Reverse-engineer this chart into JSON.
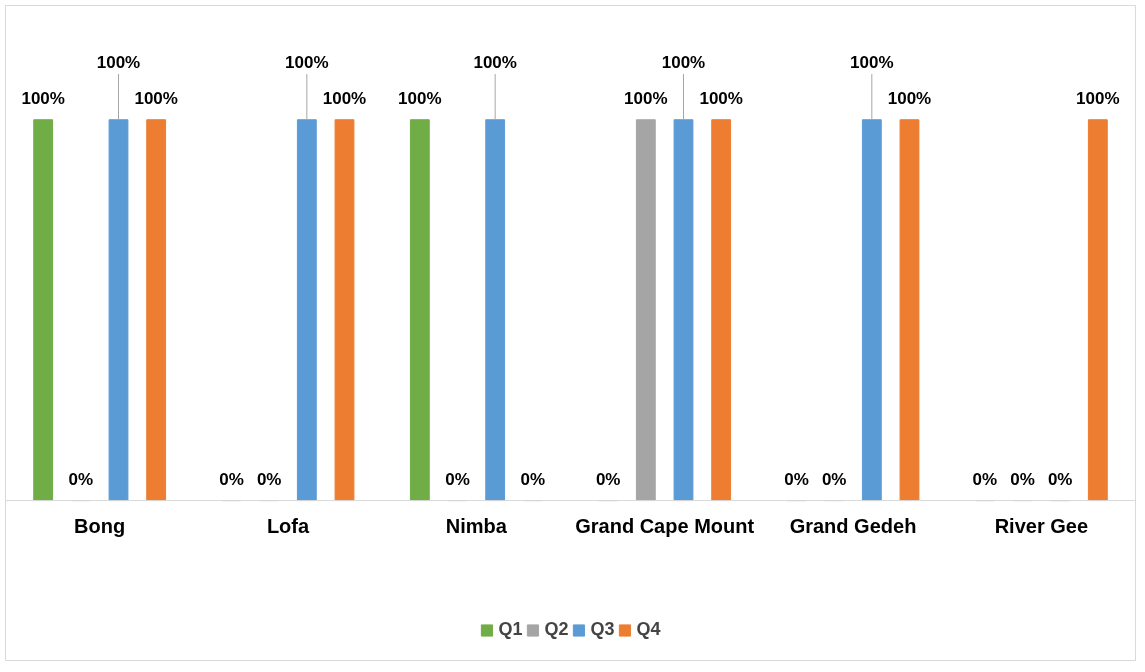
{
  "chart_data": {
    "type": "bar",
    "categories": [
      "Bong",
      "Lofa",
      "Nimba",
      "Grand Cape Mount",
      "Grand Gedeh",
      "River Gee"
    ],
    "series": [
      {
        "name": "Q1",
        "color": "#70ad47",
        "values": [
          100,
          0,
          100,
          0,
          0,
          0
        ],
        "value_labels": [
          "100%",
          "0%",
          "100%",
          "0%",
          "0%",
          "0%"
        ]
      },
      {
        "name": "Q2",
        "color": "#a5a5a5",
        "values": [
          0,
          0,
          0,
          100,
          0,
          0
        ],
        "value_labels": [
          "0%",
          "0%",
          "0%",
          "100%",
          "0%",
          "0%"
        ]
      },
      {
        "name": "Q3",
        "color": "#5b9bd5",
        "values": [
          100,
          100,
          100,
          100,
          100,
          0
        ],
        "value_labels": [
          "100%",
          "100%",
          "100%",
          "100%",
          "100%",
          "0%"
        ]
      },
      {
        "name": "Q4",
        "color": "#ed7d31",
        "values": [
          100,
          100,
          0,
          100,
          100,
          100
        ],
        "value_labels": [
          "100%",
          "100%",
          "0%",
          "100%",
          "100%",
          "100%"
        ]
      }
    ],
    "legend": "bottom",
    "grid": false
  }
}
